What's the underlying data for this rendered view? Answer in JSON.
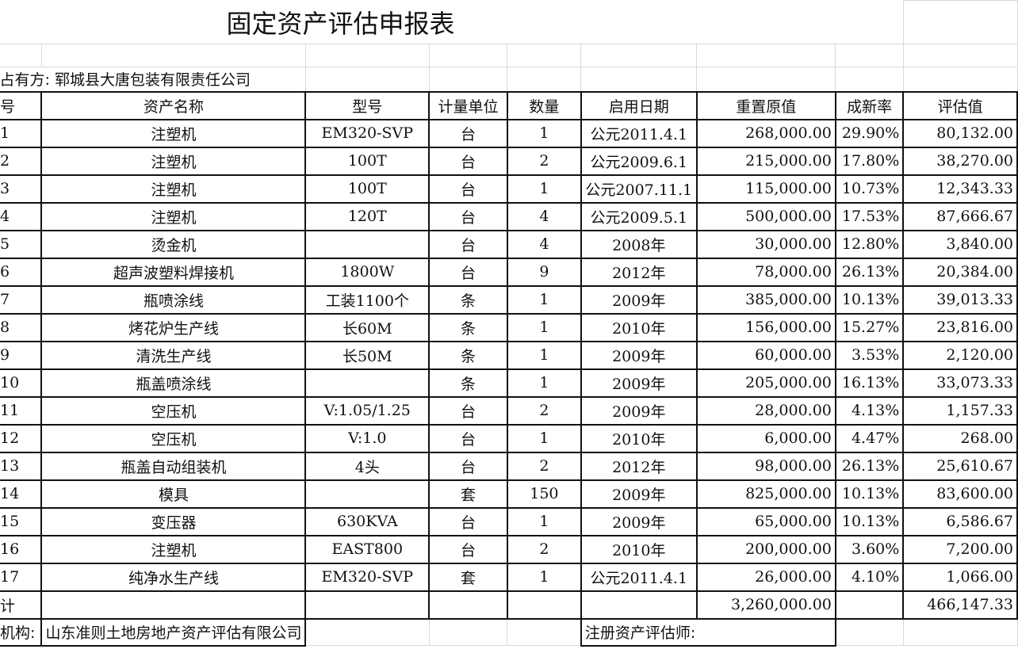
{
  "title": "固定资产评估申报表",
  "owner": {
    "label": "占有方:",
    "value": "郓城县大唐包装有限责任公司"
  },
  "headers": [
    "号",
    "资产名称",
    "型号",
    "计量单位",
    "数量",
    "启用日期",
    "重置原值",
    "成新率",
    "评估值"
  ],
  "rows": [
    [
      "1",
      "注塑机",
      "EM320-SVP",
      "台",
      "1",
      "公元2011.4.1",
      "268,000.00",
      "29.90%",
      "80,132.00"
    ],
    [
      "2",
      "注塑机",
      "100T",
      "台",
      "2",
      "公元2009.6.1",
      "215,000.00",
      "17.80%",
      "38,270.00"
    ],
    [
      "3",
      "注塑机",
      "100T",
      "台",
      "1",
      "公元2007.11.1",
      "115,000.00",
      "10.73%",
      "12,343.33"
    ],
    [
      "4",
      "注塑机",
      "120T",
      "台",
      "4",
      "公元2009.5.1",
      "500,000.00",
      "17.53%",
      "87,666.67"
    ],
    [
      "5",
      "烫金机",
      "",
      "台",
      "4",
      "2008年",
      "30,000.00",
      "12.80%",
      "3,840.00"
    ],
    [
      "6",
      "超声波塑料焊接机",
      "1800W",
      "台",
      "9",
      "2012年",
      "78,000.00",
      "26.13%",
      "20,384.00"
    ],
    [
      "7",
      "瓶喷涂线",
      "工装1100个",
      "条",
      "1",
      "2009年",
      "385,000.00",
      "10.13%",
      "39,013.33"
    ],
    [
      "8",
      "烤花炉生产线",
      "长60M",
      "条",
      "1",
      "2010年",
      "156,000.00",
      "15.27%",
      "23,816.00"
    ],
    [
      "9",
      "清洗生产线",
      "长50M",
      "条",
      "1",
      "2009年",
      "60,000.00",
      "3.53%",
      "2,120.00"
    ],
    [
      "10",
      "瓶盖喷涂线",
      "",
      "条",
      "1",
      "2009年",
      "205,000.00",
      "16.13%",
      "33,073.33"
    ],
    [
      "11",
      "空压机",
      "V:1.05/1.25",
      "台",
      "2",
      "2009年",
      "28,000.00",
      "4.13%",
      "1,157.33"
    ],
    [
      "12",
      "空压机",
      "V:1.0",
      "台",
      "1",
      "2010年",
      "6,000.00",
      "4.47%",
      "268.00"
    ],
    [
      "13",
      "瓶盖自动组装机",
      "4头",
      "台",
      "2",
      "2012年",
      "98,000.00",
      "26.13%",
      "25,610.67"
    ],
    [
      "14",
      "模具",
      "",
      "套",
      "150",
      "2009年",
      "825,000.00",
      "10.13%",
      "83,600.00"
    ],
    [
      "15",
      "变压器",
      "630KVA",
      "台",
      "1",
      "2009年",
      "65,000.00",
      "10.13%",
      "6,586.67"
    ],
    [
      "16",
      "注塑机",
      "EAST800",
      "台",
      "2",
      "2010年",
      "200,000.00",
      "3.60%",
      "7,200.00"
    ],
    [
      "17",
      "纯净水生产线",
      "EM320-SVP",
      "套",
      "1",
      "公元2011.4.1",
      "26,000.00",
      "4.10%",
      "1,066.00"
    ]
  ],
  "total": {
    "label": "计",
    "original": "3,260,000.00",
    "value": "466,147.33"
  },
  "footer": {
    "agency_label": "机构:",
    "agency": "山东准则土地房地产资产评估有限公司",
    "appraiser_label": "注册资产评估师:"
  }
}
